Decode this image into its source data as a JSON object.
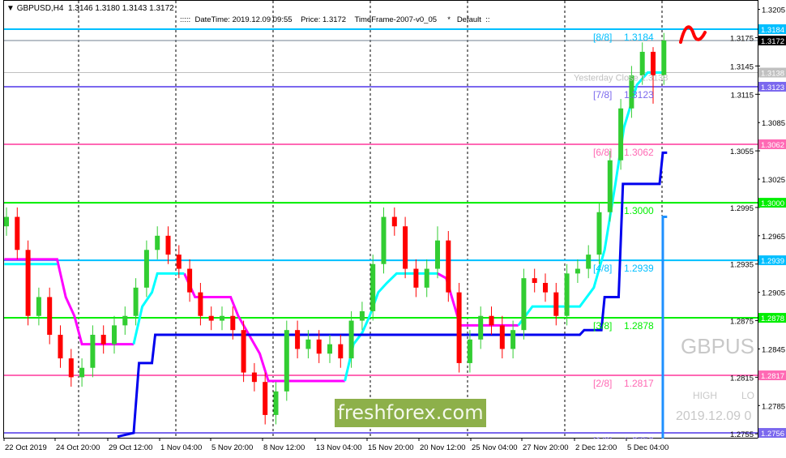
{
  "header": {
    "symbol_line": "GBPUSD,H4  1.3146 1.3180 1.3143 1.3172",
    "info_line": ":::::  DateTime: 2019.12.09 09:55    Price: 1.3172    TimeFrame-2007-v0_05     *   Default  ::"
  },
  "watermark": {
    "symbol": "GBPUS",
    "high": "HIGH",
    "low": "LO",
    "date": "2019.12.09 0"
  },
  "logo": "freshforex.com",
  "colors": {
    "bull": "#32cd32",
    "bear": "#ff0000",
    "magenta": "#ff00ff",
    "cyan": "#00ffff",
    "blue": "#0000ee",
    "lightblue": "#1e90ff",
    "grid": "#000000"
  },
  "chart_data": {
    "type": "candlestick",
    "symbol": "GBPUSD",
    "timeframe": "H4",
    "ylim": [
      1.2745,
      1.3215
    ],
    "y_ticks": [
      "1.3205",
      "1.3175",
      "1.3145",
      "1.3115",
      "1.3085",
      "1.3055",
      "1.3025",
      "1.2995",
      "1.2965",
      "1.2935",
      "1.2905",
      "1.2875",
      "1.2845",
      "1.2815",
      "1.2785",
      "1.2755"
    ],
    "x_labels": [
      "22 Oct 2019",
      "24 Oct 20:00",
      "29 Oct 12:00",
      "1 Nov 04:00",
      "5 Nov 20:00",
      "8 Nov 12:00",
      "13 Nov 04:00",
      "15 Nov 20:00",
      "20 Nov 12:00",
      "25 Nov 04:00",
      "27 Nov 20:00",
      "2 Dec 12:00",
      "5 Dec 04:00"
    ],
    "ohlc": [
      [
        1.2975,
        1.2995,
        1.2965,
        1.2985
      ],
      [
        1.2985,
        1.2995,
        1.294,
        1.295
      ],
      [
        1.295,
        1.296,
        1.287,
        1.288
      ],
      [
        1.288,
        1.291,
        1.287,
        1.29
      ],
      [
        1.29,
        1.291,
        1.285,
        1.286
      ],
      [
        1.286,
        1.287,
        1.2825,
        1.2835
      ],
      [
        1.2835,
        1.2845,
        1.2805,
        1.2815
      ],
      [
        1.2815,
        1.2835,
        1.2805,
        1.2825
      ],
      [
        1.2825,
        1.287,
        1.2815,
        1.286
      ],
      [
        1.286,
        1.287,
        1.284,
        1.285
      ],
      [
        1.285,
        1.288,
        1.284,
        1.287
      ],
      [
        1.287,
        1.289,
        1.286,
        1.288
      ],
      [
        1.288,
        1.292,
        1.287,
        1.291
      ],
      [
        1.291,
        1.296,
        1.29,
        1.295
      ],
      [
        1.295,
        1.2975,
        1.294,
        1.2965
      ],
      [
        1.2965,
        1.2975,
        1.2935,
        1.2945
      ],
      [
        1.2945,
        1.2955,
        1.292,
        1.293
      ],
      [
        1.293,
        1.294,
        1.2895,
        1.2905
      ],
      [
        1.2905,
        1.2915,
        1.287,
        1.288
      ],
      [
        1.288,
        1.289,
        1.2865,
        1.2875
      ],
      [
        1.2875,
        1.289,
        1.2865,
        1.288
      ],
      [
        1.288,
        1.289,
        1.2855,
        1.2865
      ],
      [
        1.2865,
        1.2875,
        1.281,
        1.282
      ],
      [
        1.282,
        1.283,
        1.28,
        1.281
      ],
      [
        1.281,
        1.282,
        1.2765,
        1.2775
      ],
      [
        1.2775,
        1.281,
        1.2765,
        1.28
      ],
      [
        1.28,
        1.2875,
        1.279,
        1.2865
      ],
      [
        1.2865,
        1.2875,
        1.2835,
        1.2845
      ],
      [
        1.2845,
        1.2865,
        1.2835,
        1.2855
      ],
      [
        1.2855,
        1.2865,
        1.283,
        1.284
      ],
      [
        1.284,
        1.286,
        1.283,
        1.285
      ],
      [
        1.285,
        1.286,
        1.2825,
        1.2835
      ],
      [
        1.2835,
        1.2885,
        1.2825,
        1.2875
      ],
      [
        1.2875,
        1.2895,
        1.2865,
        1.2885
      ],
      [
        1.2885,
        1.2945,
        1.2875,
        1.2935
      ],
      [
        1.2935,
        1.2995,
        1.2925,
        1.2985
      ],
      [
        1.2985,
        1.2995,
        1.2965,
        1.2975
      ],
      [
        1.2975,
        1.2985,
        1.292,
        1.293
      ],
      [
        1.293,
        1.294,
        1.29,
        1.291
      ],
      [
        1.291,
        1.294,
        1.29,
        1.293
      ],
      [
        1.293,
        1.2975,
        1.292,
        1.296
      ],
      [
        1.296,
        1.297,
        1.2895,
        1.2905
      ],
      [
        1.2905,
        1.2915,
        1.282,
        1.283
      ],
      [
        1.283,
        1.2865,
        1.282,
        1.2855
      ],
      [
        1.2855,
        1.289,
        1.2845,
        1.288
      ],
      [
        1.288,
        1.289,
        1.286,
        1.287
      ],
      [
        1.287,
        1.288,
        1.2835,
        1.2845
      ],
      [
        1.2845,
        1.2875,
        1.2835,
        1.2865
      ],
      [
        1.2865,
        1.293,
        1.2855,
        1.292
      ],
      [
        1.292,
        1.293,
        1.2905,
        1.2915
      ],
      [
        1.2915,
        1.2925,
        1.2895,
        1.2905
      ],
      [
        1.2905,
        1.2915,
        1.287,
        1.288
      ],
      [
        1.288,
        1.2935,
        1.287,
        1.2925
      ],
      [
        1.2925,
        1.294,
        1.2915,
        1.293
      ],
      [
        1.293,
        1.2955,
        1.292,
        1.2945
      ],
      [
        1.2945,
        1.3,
        1.2935,
        1.299
      ],
      [
        1.299,
        1.3055,
        1.298,
        1.3045
      ],
      [
        1.3045,
        1.311,
        1.3035,
        1.31
      ],
      [
        1.31,
        1.3145,
        1.309,
        1.3135
      ],
      [
        1.3135,
        1.317,
        1.3125,
        1.316
      ],
      [
        1.316,
        1.3165,
        1.3105,
        1.3135
      ],
      [
        1.3135,
        1.318,
        1.3125,
        1.3172
      ]
    ],
    "levels": [
      {
        "tag": "[8/8]",
        "value": "1.3184",
        "price": 1.3184,
        "color": "#00bfff"
      },
      {
        "tag": "[7/8]",
        "value": "1.3123",
        "price": 1.3123,
        "color": "#7b68ee"
      },
      {
        "tag": "[6/8]",
        "value": "1.3062",
        "price": 1.3062,
        "color": "#ff69b4"
      },
      {
        "tag": "",
        "value": "1.3000",
        "price": 1.3,
        "color": "#00ee00"
      },
      {
        "tag": "[4/8]",
        "value": "1.2939",
        "price": 1.2939,
        "color": "#00bfff"
      },
      {
        "tag": "[3/8]",
        "value": "1.2878",
        "price": 1.2878,
        "color": "#00ee00"
      },
      {
        "tag": "[2/8]",
        "value": "1.2817",
        "price": 1.2817,
        "color": "#ff69b4"
      },
      {
        "tag": "[1/8]",
        "value": "1.2756",
        "price": 1.2756,
        "color": "#7b68ee"
      }
    ],
    "current_price": {
      "value": "1.3172",
      "price": 1.3172,
      "color": "#000000"
    },
    "yesterday_close": {
      "label": "Yesterday Close",
      "value": "1.3138",
      "price": 1.3138,
      "color": "#c0c0c0"
    },
    "indicators": {
      "magenta": [
        [
          [
            -0.2,
            1.294
          ],
          [
            4.7,
            1.294
          ],
          [
            5.5,
            1.29
          ],
          [
            6.3,
            1.288
          ],
          [
            7.0,
            1.285
          ],
          [
            11.8,
            1.285
          ]
        ],
        [
          [
            16.5,
            1.2925
          ],
          [
            17.5,
            1.29
          ],
          [
            20.8,
            1.29
          ],
          [
            21.5,
            1.288
          ],
          [
            22.5,
            1.286
          ],
          [
            23.5,
            1.284
          ],
          [
            24.3,
            1.2811
          ],
          [
            31.4,
            1.2811
          ]
        ],
        [
          [
            40,
            1.2925
          ],
          [
            40.8,
            1.292
          ],
          [
            42.1,
            1.287
          ],
          [
            47.5,
            1.287
          ]
        ]
      ],
      "cyan": [
        [
          [
            -0.2,
            1.2935
          ],
          [
            4.7,
            1.2935
          ]
        ],
        [
          [
            11.8,
            1.285
          ],
          [
            12.6,
            1.289
          ],
          [
            13.5,
            1.2905
          ],
          [
            14.0,
            1.2925
          ],
          [
            16.5,
            1.2925
          ]
        ],
        [
          [
            31.4,
            1.2811
          ],
          [
            32.2,
            1.285
          ],
          [
            33.0,
            1.2862
          ],
          [
            33.7,
            1.288
          ],
          [
            34.5,
            1.2905
          ],
          [
            35.3,
            1.2915
          ],
          [
            36.2,
            1.2925
          ],
          [
            40,
            1.2925
          ]
        ],
        [
          [
            47.5,
            1.287
          ],
          [
            48.8,
            1.289
          ],
          [
            53.2,
            1.289
          ],
          [
            54.5,
            1.291
          ],
          [
            55.5,
            1.295
          ],
          [
            56.5,
            1.302
          ],
          [
            57.3,
            1.308
          ],
          [
            58.5,
            1.3125
          ],
          [
            59.5,
            1.3138
          ],
          [
            61.2,
            1.3138
          ]
        ]
      ],
      "blue": [
        [
          [
            10.3,
            1.2752
          ],
          [
            11.8,
            1.2756
          ],
          [
            12.3,
            1.283
          ],
          [
            13.5,
            1.283
          ],
          [
            13.8,
            1.286
          ],
          [
            53.2,
            1.286
          ],
          [
            53.6,
            1.2865
          ],
          [
            55.2,
            1.2865
          ],
          [
            55.5,
            1.29
          ],
          [
            56.8,
            1.29
          ],
          [
            57.2,
            1.302
          ],
          [
            60.6,
            1.302
          ],
          [
            60.9,
            1.3053
          ],
          [
            61.3,
            1.3053
          ]
        ]
      ],
      "lightblue": [
        [
          [
            61.3,
            1.2985
          ],
          [
            60.9,
            1.2985
          ],
          [
            60.9,
            1.274
          ]
        ]
      ]
    }
  }
}
